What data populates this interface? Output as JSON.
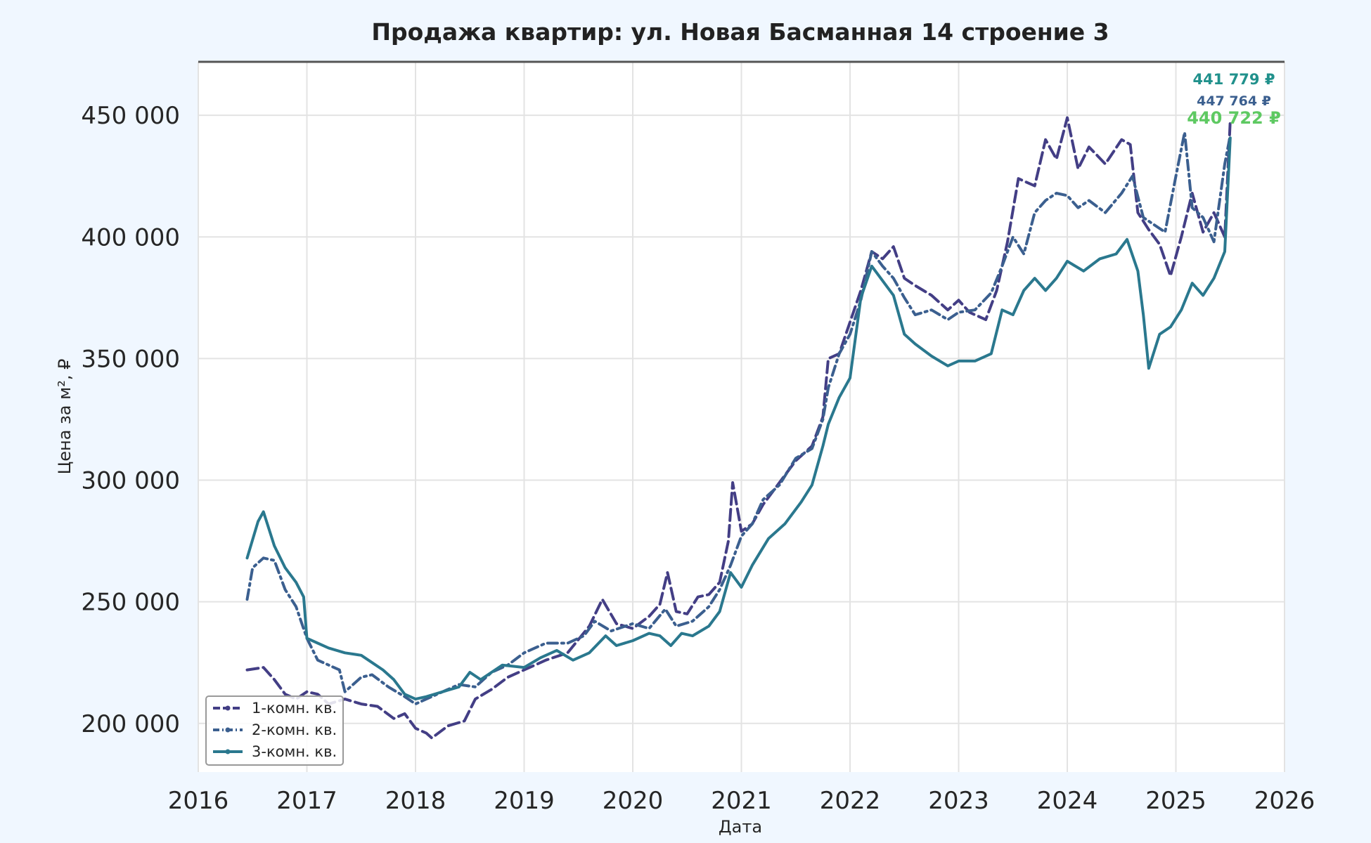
{
  "chart_data": {
    "type": "line",
    "title": "Продажа квартир: ул. Новая Басманная 14 строение 3",
    "xlabel": "Дата",
    "ylabel": "Цена за м², ₽",
    "xlim": [
      2016.0,
      2026.0
    ],
    "ylim": [
      180000,
      472000
    ],
    "x_ticks": [
      "2016",
      "2017",
      "2018",
      "2019",
      "2020",
      "2021",
      "2022",
      "2023",
      "2024",
      "2025",
      "2026"
    ],
    "y_ticks": [
      "200 000",
      "250 000",
      "300 000",
      "350 000",
      "400 000",
      "450 000"
    ],
    "grid": true,
    "legend_position": "lower-left",
    "series": [
      {
        "name": "1-комн. кв.",
        "color": "#433e85",
        "style": "dashed",
        "end_label": "447 764 ₽",
        "points": [
          [
            2016.45,
            222000
          ],
          [
            2016.6,
            223000
          ],
          [
            2016.7,
            218000
          ],
          [
            2016.8,
            212000
          ],
          [
            2016.9,
            210000
          ],
          [
            2017.0,
            213000
          ],
          [
            2017.1,
            212000
          ],
          [
            2017.2,
            208000
          ],
          [
            2017.35,
            210000
          ],
          [
            2017.5,
            208000
          ],
          [
            2017.65,
            207000
          ],
          [
            2017.8,
            202000
          ],
          [
            2017.9,
            204000
          ],
          [
            2018.0,
            198000
          ],
          [
            2018.1,
            196000
          ],
          [
            2018.15,
            194000
          ],
          [
            2018.3,
            199000
          ],
          [
            2018.45,
            201000
          ],
          [
            2018.55,
            210000
          ],
          [
            2018.7,
            214000
          ],
          [
            2018.85,
            219000
          ],
          [
            2019.0,
            222000
          ],
          [
            2019.2,
            226000
          ],
          [
            2019.4,
            229000
          ],
          [
            2019.6,
            240000
          ],
          [
            2019.72,
            251000
          ],
          [
            2019.85,
            241000
          ],
          [
            2020.0,
            239000
          ],
          [
            2020.15,
            244000
          ],
          [
            2020.25,
            249000
          ],
          [
            2020.32,
            262000
          ],
          [
            2020.4,
            246000
          ],
          [
            2020.5,
            245000
          ],
          [
            2020.6,
            252000
          ],
          [
            2020.7,
            253000
          ],
          [
            2020.8,
            258000
          ],
          [
            2020.88,
            275000
          ],
          [
            2020.92,
            299000
          ],
          [
            2021.0,
            279000
          ],
          [
            2021.1,
            282000
          ],
          [
            2021.2,
            290000
          ],
          [
            2021.35,
            299000
          ],
          [
            2021.5,
            308000
          ],
          [
            2021.65,
            314000
          ],
          [
            2021.75,
            326000
          ],
          [
            2021.8,
            350000
          ],
          [
            2021.9,
            352000
          ],
          [
            2022.0,
            365000
          ],
          [
            2022.1,
            378000
          ],
          [
            2022.2,
            394000
          ],
          [
            2022.3,
            391000
          ],
          [
            2022.4,
            396000
          ],
          [
            2022.5,
            383000
          ],
          [
            2022.6,
            380000
          ],
          [
            2022.75,
            376000
          ],
          [
            2022.9,
            370000
          ],
          [
            2023.0,
            374000
          ],
          [
            2023.1,
            369000
          ],
          [
            2023.25,
            366000
          ],
          [
            2023.35,
            378000
          ],
          [
            2023.45,
            398000
          ],
          [
            2023.55,
            424000
          ],
          [
            2023.7,
            421000
          ],
          [
            2023.8,
            440000
          ],
          [
            2023.9,
            432000
          ],
          [
            2024.0,
            449000
          ],
          [
            2024.1,
            428000
          ],
          [
            2024.2,
            437000
          ],
          [
            2024.35,
            430000
          ],
          [
            2024.5,
            440000
          ],
          [
            2024.58,
            438000
          ],
          [
            2024.65,
            410000
          ],
          [
            2024.75,
            403000
          ],
          [
            2024.85,
            397000
          ],
          [
            2024.95,
            384000
          ],
          [
            2025.05,
            400000
          ],
          [
            2025.15,
            418000
          ],
          [
            2025.25,
            402000
          ],
          [
            2025.35,
            410000
          ],
          [
            2025.45,
            400000
          ],
          [
            2025.5,
            447764
          ]
        ]
      },
      {
        "name": "2-комн. кв.",
        "color": "#3b5f8f",
        "style": "dashdot",
        "end_label": "441 779 ₽",
        "points": [
          [
            2016.45,
            251000
          ],
          [
            2016.5,
            264000
          ],
          [
            2016.6,
            268000
          ],
          [
            2016.7,
            267000
          ],
          [
            2016.8,
            255000
          ],
          [
            2016.9,
            248000
          ],
          [
            2017.0,
            235000
          ],
          [
            2017.1,
            226000
          ],
          [
            2017.2,
            224000
          ],
          [
            2017.3,
            222000
          ],
          [
            2017.35,
            213000
          ],
          [
            2017.5,
            219000
          ],
          [
            2017.6,
            220000
          ],
          [
            2017.75,
            215000
          ],
          [
            2017.9,
            211000
          ],
          [
            2018.0,
            208000
          ],
          [
            2018.1,
            210000
          ],
          [
            2018.25,
            213000
          ],
          [
            2018.4,
            216000
          ],
          [
            2018.55,
            215000
          ],
          [
            2018.7,
            221000
          ],
          [
            2018.85,
            224000
          ],
          [
            2019.0,
            229000
          ],
          [
            2019.2,
            233000
          ],
          [
            2019.4,
            233000
          ],
          [
            2019.55,
            236000
          ],
          [
            2019.65,
            242000
          ],
          [
            2019.8,
            238000
          ],
          [
            2020.0,
            241000
          ],
          [
            2020.15,
            239000
          ],
          [
            2020.3,
            247000
          ],
          [
            2020.4,
            240000
          ],
          [
            2020.55,
            242000
          ],
          [
            2020.7,
            248000
          ],
          [
            2020.8,
            255000
          ],
          [
            2020.9,
            265000
          ],
          [
            2021.0,
            277000
          ],
          [
            2021.1,
            282000
          ],
          [
            2021.2,
            292000
          ],
          [
            2021.35,
            298000
          ],
          [
            2021.5,
            309000
          ],
          [
            2021.65,
            313000
          ],
          [
            2021.75,
            325000
          ],
          [
            2021.8,
            338000
          ],
          [
            2021.9,
            352000
          ],
          [
            2022.0,
            360000
          ],
          [
            2022.1,
            374000
          ],
          [
            2022.2,
            394000
          ],
          [
            2022.3,
            388000
          ],
          [
            2022.4,
            383000
          ],
          [
            2022.5,
            375000
          ],
          [
            2022.6,
            368000
          ],
          [
            2022.75,
            370000
          ],
          [
            2022.9,
            366000
          ],
          [
            2023.0,
            369000
          ],
          [
            2023.15,
            370000
          ],
          [
            2023.3,
            377000
          ],
          [
            2023.4,
            388000
          ],
          [
            2023.5,
            400000
          ],
          [
            2023.6,
            393000
          ],
          [
            2023.7,
            410000
          ],
          [
            2023.8,
            415000
          ],
          [
            2023.9,
            418000
          ],
          [
            2024.0,
            417000
          ],
          [
            2024.1,
            412000
          ],
          [
            2024.2,
            415000
          ],
          [
            2024.35,
            410000
          ],
          [
            2024.5,
            418000
          ],
          [
            2024.6,
            425000
          ],
          [
            2024.7,
            408000
          ],
          [
            2024.8,
            405000
          ],
          [
            2024.9,
            402000
          ],
          [
            2025.0,
            425000
          ],
          [
            2025.08,
            443000
          ],
          [
            2025.15,
            412000
          ],
          [
            2025.25,
            408000
          ],
          [
            2025.35,
            398000
          ],
          [
            2025.45,
            430000
          ],
          [
            2025.5,
            441779
          ]
        ]
      },
      {
        "name": "3-комн. кв.",
        "color": "#2a788e",
        "style": "solid",
        "end_label": "440 722 ₽",
        "points": [
          [
            2016.45,
            268000
          ],
          [
            2016.55,
            283000
          ],
          [
            2016.6,
            287000
          ],
          [
            2016.7,
            273000
          ],
          [
            2016.8,
            264000
          ],
          [
            2016.9,
            258000
          ],
          [
            2016.97,
            252000
          ],
          [
            2017.0,
            235000
          ],
          [
            2017.1,
            233000
          ],
          [
            2017.2,
            231000
          ],
          [
            2017.35,
            229000
          ],
          [
            2017.5,
            228000
          ],
          [
            2017.6,
            225000
          ],
          [
            2017.7,
            222000
          ],
          [
            2017.8,
            218000
          ],
          [
            2017.9,
            212000
          ],
          [
            2018.0,
            210000
          ],
          [
            2018.1,
            211000
          ],
          [
            2018.25,
            213000
          ],
          [
            2018.4,
            215000
          ],
          [
            2018.5,
            221000
          ],
          [
            2018.6,
            218000
          ],
          [
            2018.8,
            224000
          ],
          [
            2019.0,
            223000
          ],
          [
            2019.15,
            227000
          ],
          [
            2019.3,
            230000
          ],
          [
            2019.45,
            226000
          ],
          [
            2019.6,
            229000
          ],
          [
            2019.75,
            236000
          ],
          [
            2019.85,
            232000
          ],
          [
            2020.0,
            234000
          ],
          [
            2020.15,
            237000
          ],
          [
            2020.25,
            236000
          ],
          [
            2020.35,
            232000
          ],
          [
            2020.45,
            237000
          ],
          [
            2020.55,
            236000
          ],
          [
            2020.7,
            240000
          ],
          [
            2020.8,
            246000
          ],
          [
            2020.9,
            262000
          ],
          [
            2021.0,
            256000
          ],
          [
            2021.1,
            265000
          ],
          [
            2021.25,
            276000
          ],
          [
            2021.4,
            282000
          ],
          [
            2021.55,
            291000
          ],
          [
            2021.65,
            298000
          ],
          [
            2021.75,
            314000
          ],
          [
            2021.8,
            323000
          ],
          [
            2021.9,
            334000
          ],
          [
            2022.0,
            342000
          ],
          [
            2022.1,
            375000
          ],
          [
            2022.2,
            388000
          ],
          [
            2022.3,
            382000
          ],
          [
            2022.4,
            376000
          ],
          [
            2022.5,
            360000
          ],
          [
            2022.6,
            356000
          ],
          [
            2022.75,
            351000
          ],
          [
            2022.9,
            347000
          ],
          [
            2023.0,
            349000
          ],
          [
            2023.15,
            349000
          ],
          [
            2023.3,
            352000
          ],
          [
            2023.4,
            370000
          ],
          [
            2023.5,
            368000
          ],
          [
            2023.6,
            378000
          ],
          [
            2023.7,
            383000
          ],
          [
            2023.8,
            378000
          ],
          [
            2023.9,
            383000
          ],
          [
            2024.0,
            390000
          ],
          [
            2024.15,
            386000
          ],
          [
            2024.3,
            391000
          ],
          [
            2024.45,
            393000
          ],
          [
            2024.55,
            399000
          ],
          [
            2024.65,
            386000
          ],
          [
            2024.7,
            368000
          ],
          [
            2024.75,
            346000
          ],
          [
            2024.85,
            360000
          ],
          [
            2024.95,
            363000
          ],
          [
            2025.05,
            370000
          ],
          [
            2025.15,
            381000
          ],
          [
            2025.25,
            376000
          ],
          [
            2025.35,
            383000
          ],
          [
            2025.45,
            394000
          ],
          [
            2025.5,
            440722
          ]
        ]
      }
    ]
  }
}
